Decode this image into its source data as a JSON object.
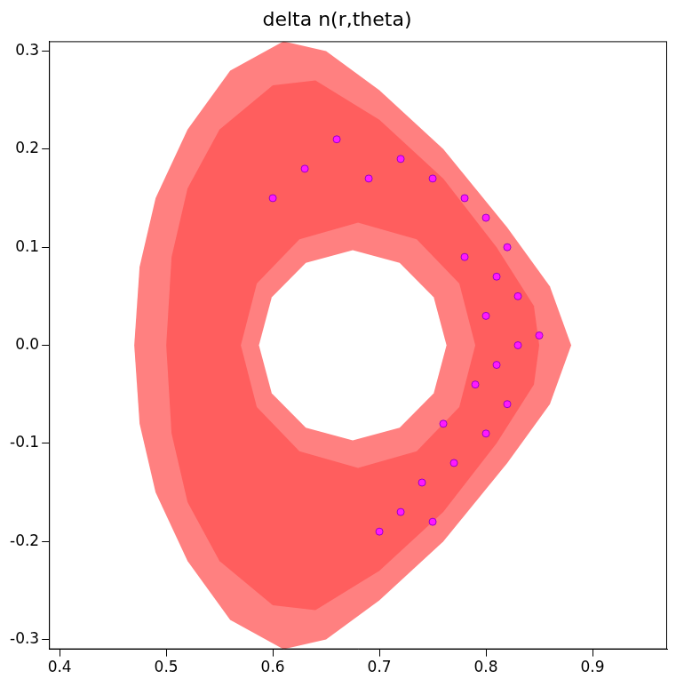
{
  "chart_data": {
    "type": "contour",
    "title": "delta n(r,theta)",
    "xlim": [
      0.39,
      0.97
    ],
    "ylim": [
      -0.31,
      0.31
    ],
    "xticks": [
      0.4,
      0.5,
      0.6,
      0.7,
      0.8,
      0.9
    ],
    "yticks": [
      -0.3,
      -0.2,
      -0.1,
      {
        "value": 0,
        "label": "0.0"
      },
      0.1,
      0.2,
      0.3
    ],
    "grid": false,
    "series": [
      {
        "type": "area",
        "color": "#ff8080",
        "x": [
          0.47,
          0.475,
          0.49,
          0.52,
          0.56,
          0.61,
          0.65,
          0.7,
          0.76,
          0.82,
          0.86,
          0.88,
          0.86,
          0.82,
          0.76,
          0.7,
          0.65,
          0.61,
          0.56,
          0.52,
          0.49,
          0.475,
          0.47
        ],
        "y": [
          0,
          0.08,
          0.15,
          0.22,
          0.28,
          0.31,
          0.3,
          0.26,
          0.2,
          0.12,
          0.06,
          0,
          -0.06,
          -0.12,
          -0.2,
          -0.26,
          -0.3,
          -0.31,
          -0.28,
          -0.22,
          -0.15,
          -0.08,
          0
        ]
      },
      {
        "type": "area",
        "color": "#ff5e5e",
        "x": [
          0.5,
          0.505,
          0.52,
          0.55,
          0.6,
          0.64,
          0.7,
          0.76,
          0.81,
          0.845,
          0.85,
          0.845,
          0.81,
          0.76,
          0.7,
          0.64,
          0.6,
          0.55,
          0.52,
          0.505,
          0.5
        ],
        "y": [
          0,
          0.09,
          0.16,
          0.22,
          0.265,
          0.27,
          0.23,
          0.17,
          0.1,
          0.04,
          0,
          -0.04,
          -0.1,
          -0.17,
          -0.23,
          -0.27,
          -0.265,
          -0.22,
          -0.16,
          -0.09,
          0
        ]
      },
      {
        "type": "area",
        "color": "#ff8080",
        "x": [
          0.79,
          0.775,
          0.735,
          0.68,
          0.625,
          0.585,
          0.57,
          0.585,
          0.625,
          0.68,
          0.735,
          0.775,
          0.79
        ],
        "y": [
          0,
          0.063,
          0.108,
          0.125,
          0.108,
          0.063,
          0,
          -0.063,
          -0.108,
          -0.125,
          -0.108,
          -0.063,
          0
        ]
      },
      {
        "type": "area",
        "color": "#ffffff",
        "x": [
          0.763,
          0.751,
          0.719,
          0.675,
          0.631,
          0.599,
          0.587,
          0.599,
          0.631,
          0.675,
          0.719,
          0.751,
          0.763
        ],
        "y": [
          0,
          0.049,
          0.084,
          0.097,
          0.084,
          0.049,
          0,
          -0.049,
          -0.084,
          -0.097,
          -0.084,
          -0.049,
          0
        ]
      },
      {
        "type": "scatter",
        "marker": "circle",
        "color": "#ff19ff",
        "x": [
          0.72,
          0.75,
          0.78,
          0.8,
          0.82,
          0.81,
          0.83,
          0.8,
          0.83,
          0.81,
          0.79,
          0.82,
          0.8,
          0.77,
          0.74,
          0.72,
          0.7,
          0.75,
          0.66,
          0.69,
          0.63,
          0.78,
          0.76,
          0.85,
          0.6
        ],
        "y": [
          0.19,
          0.17,
          0.15,
          0.13,
          0.1,
          0.07,
          0.05,
          0.03,
          0.0,
          -0.02,
          -0.04,
          -0.06,
          -0.09,
          -0.12,
          -0.14,
          -0.17,
          -0.19,
          -0.18,
          0.21,
          0.17,
          0.18,
          0.09,
          -0.08,
          0.01,
          0.15
        ]
      }
    ]
  }
}
